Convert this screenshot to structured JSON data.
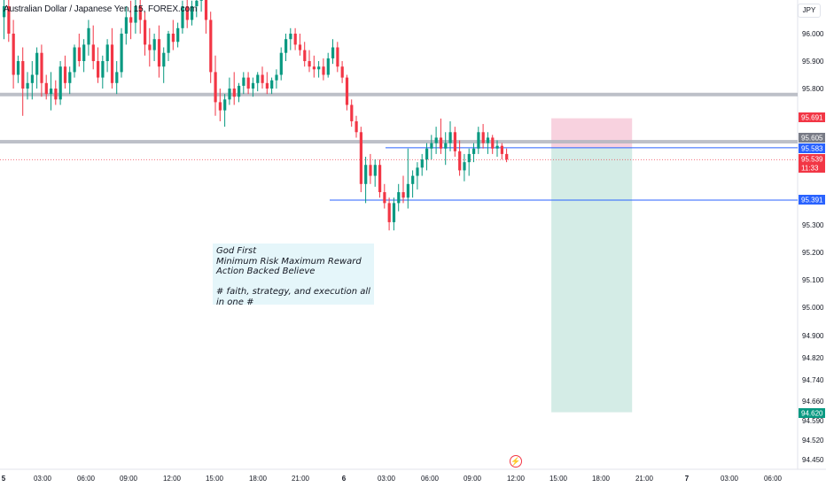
{
  "header": {
    "title": "Australian Dollar / Japanese Yen, 15, FOREX.com",
    "currency_button": "JPY"
  },
  "note": {
    "text": "God First\nMinimum Risk Maximum Reward\nAction Backed Believe\n\n# faith, strategy, and execution all in one #"
  },
  "colors": {
    "up": "#089981",
    "down": "#f23645",
    "stop_zone": "#f7cad9",
    "target_zone": "#cfeae3",
    "blue_line": "#2962ff",
    "sr_band": "#b2b5be"
  },
  "chart_data": {
    "type": "candlestick",
    "title": "Australian Dollar / Japanese Yen, 15, FOREX.com",
    "y_axis": {
      "ticks": [
        "96.000",
        "95.900",
        "95.800",
        "95.300",
        "95.200",
        "95.100",
        "95.000",
        "94.900",
        "94.820",
        "94.740",
        "94.660",
        "94.590",
        "94.520",
        "94.450"
      ],
      "position": "right"
    },
    "x_axis": {
      "ticks": [
        "5",
        "03:00",
        "06:00",
        "09:00",
        "12:00",
        "15:00",
        "18:00",
        "21:00",
        "6",
        "03:00",
        "06:00",
        "09:00",
        "12:00",
        "15:00",
        "18:00",
        "21:00",
        "7",
        "03:00",
        "06:00"
      ]
    },
    "price_labels": [
      {
        "value": "95.691",
        "kind": "stop"
      },
      {
        "value": "95.605",
        "kind": "sr"
      },
      {
        "value": "95.583",
        "kind": "entry"
      },
      {
        "value": "95.539",
        "kind": "last"
      },
      {
        "value": "11:33",
        "kind": "countdown"
      },
      {
        "value": "95.391",
        "kind": "level"
      },
      {
        "value": "94.620",
        "kind": "target"
      }
    ],
    "horizontal_levels": [
      {
        "price": 95.778,
        "style": "sr-band"
      },
      {
        "price": 95.605,
        "style": "sr-band"
      },
      {
        "price": 95.583,
        "style": "blue"
      },
      {
        "price": 95.391,
        "style": "blue"
      }
    ],
    "position": {
      "side": "short",
      "entry": 95.583,
      "stop": 95.691,
      "target": 94.62,
      "start_bar": 117,
      "end_bar": 134
    },
    "candles": [
      [
        96.06,
        96.14,
        95.98,
        96.1
      ],
      [
        96.1,
        96.13,
        95.97,
        96.0
      ],
      [
        96.0,
        96.05,
        95.8,
        95.85
      ],
      [
        95.85,
        95.92,
        95.82,
        95.9
      ],
      [
        95.9,
        95.95,
        95.7,
        95.8
      ],
      [
        95.8,
        95.86,
        95.76,
        95.82
      ],
      [
        95.82,
        95.9,
        95.76,
        95.85
      ],
      [
        95.85,
        95.95,
        95.8,
        95.93
      ],
      [
        95.93,
        95.96,
        95.77,
        95.82
      ],
      [
        95.82,
        95.85,
        95.76,
        95.78
      ],
      [
        95.78,
        95.86,
        95.72,
        95.8
      ],
      [
        95.8,
        95.83,
        95.74,
        95.76
      ],
      [
        95.76,
        95.9,
        95.74,
        95.88
      ],
      [
        95.88,
        95.92,
        95.8,
        95.82
      ],
      [
        95.82,
        95.88,
        95.78,
        95.86
      ],
      [
        95.86,
        95.96,
        95.84,
        95.95
      ],
      [
        95.95,
        96.0,
        95.88,
        95.9
      ],
      [
        95.9,
        95.98,
        95.86,
        95.96
      ],
      [
        95.96,
        96.05,
        95.92,
        96.02
      ],
      [
        95.96,
        96.03,
        95.87,
        95.9
      ],
      [
        95.9,
        95.95,
        95.82,
        95.84
      ],
      [
        95.84,
        95.92,
        95.8,
        95.9
      ],
      [
        95.9,
        95.98,
        95.86,
        95.96
      ],
      [
        95.96,
        96.02,
        95.8,
        95.82
      ],
      [
        95.82,
        95.9,
        95.78,
        95.86
      ],
      [
        95.86,
        96.02,
        95.84,
        96.0
      ],
      [
        96.0,
        96.1,
        95.96,
        96.06
      ],
      [
        96.06,
        96.12,
        95.98,
        96.04
      ],
      [
        96.04,
        96.14,
        96.0,
        96.1
      ],
      [
        96.1,
        96.14,
        96.0,
        96.05
      ],
      [
        96.05,
        96.08,
        95.92,
        95.96
      ],
      [
        95.96,
        96.02,
        95.88,
        95.94
      ],
      [
        95.94,
        96.0,
        95.9,
        95.98
      ],
      [
        95.98,
        96.03,
        95.84,
        95.88
      ],
      [
        95.88,
        95.95,
        95.82,
        95.93
      ],
      [
        95.93,
        96.01,
        95.9,
        96.0
      ],
      [
        96.0,
        96.05,
        95.94,
        95.97
      ],
      [
        95.97,
        96.04,
        95.95,
        96.02
      ],
      [
        96.02,
        96.12,
        96.0,
        96.1
      ],
      [
        96.1,
        96.16,
        96.02,
        96.05
      ],
      [
        96.05,
        96.12,
        96.03,
        96.1
      ],
      [
        96.1,
        96.16,
        96.06,
        96.12
      ],
      [
        96.12,
        96.18,
        96.08,
        96.15
      ],
      [
        96.15,
        96.2,
        96.0,
        96.05
      ],
      [
        96.05,
        96.08,
        95.82,
        95.86
      ],
      [
        95.86,
        95.92,
        95.7,
        95.75
      ],
      [
        95.75,
        95.8,
        95.68,
        95.72
      ],
      [
        95.72,
        95.78,
        95.66,
        95.76
      ],
      [
        95.76,
        95.84,
        95.74,
        95.8
      ],
      [
        95.8,
        95.86,
        95.74,
        95.77
      ],
      [
        95.77,
        95.82,
        95.75,
        95.81
      ],
      [
        95.81,
        95.86,
        95.78,
        95.84
      ],
      [
        95.84,
        95.86,
        95.78,
        95.8
      ],
      [
        95.8,
        95.84,
        95.77,
        95.82
      ],
      [
        95.82,
        95.86,
        95.79,
        95.85
      ],
      [
        95.85,
        95.88,
        95.8,
        95.82
      ],
      [
        95.82,
        95.86,
        95.78,
        95.8
      ],
      [
        95.8,
        95.84,
        95.78,
        95.83
      ],
      [
        95.83,
        95.87,
        95.8,
        95.85
      ],
      [
        95.85,
        95.95,
        95.83,
        95.93
      ],
      [
        95.93,
        96.0,
        95.9,
        95.98
      ],
      [
        95.98,
        96.02,
        95.94,
        96.0
      ],
      [
        96.0,
        96.02,
        95.94,
        95.96
      ],
      [
        95.96,
        96.0,
        95.92,
        95.94
      ],
      [
        95.94,
        95.97,
        95.88,
        95.9
      ],
      [
        95.9,
        95.94,
        95.86,
        95.88
      ],
      [
        95.88,
        95.92,
        95.84,
        95.87
      ],
      [
        95.87,
        95.9,
        95.84,
        95.88
      ],
      [
        95.88,
        95.91,
        95.83,
        95.85
      ],
      [
        95.85,
        95.93,
        95.84,
        95.91
      ],
      [
        95.91,
        95.98,
        95.89,
        95.95
      ],
      [
        95.95,
        95.97,
        95.86,
        95.88
      ],
      [
        95.88,
        95.9,
        95.82,
        95.84
      ],
      [
        95.84,
        95.85,
        95.72,
        95.74
      ],
      [
        95.74,
        95.76,
        95.66,
        95.68
      ],
      [
        95.68,
        95.7,
        95.62,
        95.64
      ],
      [
        95.64,
        95.66,
        95.42,
        95.45
      ],
      [
        95.45,
        95.55,
        95.38,
        95.52
      ],
      [
        95.52,
        95.56,
        95.45,
        95.48
      ],
      [
        95.48,
        95.54,
        95.44,
        95.52
      ],
      [
        95.52,
        95.54,
        95.4,
        95.42
      ],
      [
        95.42,
        95.45,
        95.36,
        95.38
      ],
      [
        95.38,
        95.4,
        95.28,
        95.31
      ],
      [
        95.31,
        95.4,
        95.28,
        95.38
      ],
      [
        95.38,
        95.45,
        95.35,
        95.42
      ],
      [
        95.42,
        95.48,
        95.38,
        95.4
      ],
      [
        95.4,
        95.58,
        95.36,
        95.45
      ],
      [
        95.45,
        95.5,
        95.4,
        95.48
      ],
      [
        95.48,
        95.53,
        95.43,
        95.51
      ],
      [
        95.51,
        95.56,
        95.48,
        95.54
      ],
      [
        95.54,
        95.6,
        95.5,
        95.58
      ],
      [
        95.58,
        95.63,
        95.54,
        95.6
      ],
      [
        95.6,
        95.66,
        95.56,
        95.62
      ],
      [
        95.62,
        95.69,
        95.56,
        95.58
      ],
      [
        95.58,
        95.64,
        95.52,
        95.6
      ],
      [
        95.6,
        95.68,
        95.57,
        95.64
      ],
      [
        95.64,
        95.66,
        95.55,
        95.57
      ],
      [
        95.57,
        95.61,
        95.48,
        95.5
      ],
      [
        95.5,
        95.56,
        95.46,
        95.53
      ],
      [
        95.53,
        95.58,
        95.48,
        95.56
      ],
      [
        95.56,
        95.6,
        95.53,
        95.58
      ],
      [
        95.58,
        95.66,
        95.56,
        95.64
      ],
      [
        95.64,
        95.67,
        95.58,
        95.6
      ],
      [
        95.6,
        95.64,
        95.56,
        95.62
      ],
      [
        95.62,
        95.63,
        95.56,
        95.58
      ],
      [
        95.58,
        95.61,
        95.55,
        95.59
      ],
      [
        95.59,
        95.6,
        95.54,
        95.56
      ],
      [
        95.56,
        95.58,
        95.53,
        95.54
      ]
    ]
  }
}
